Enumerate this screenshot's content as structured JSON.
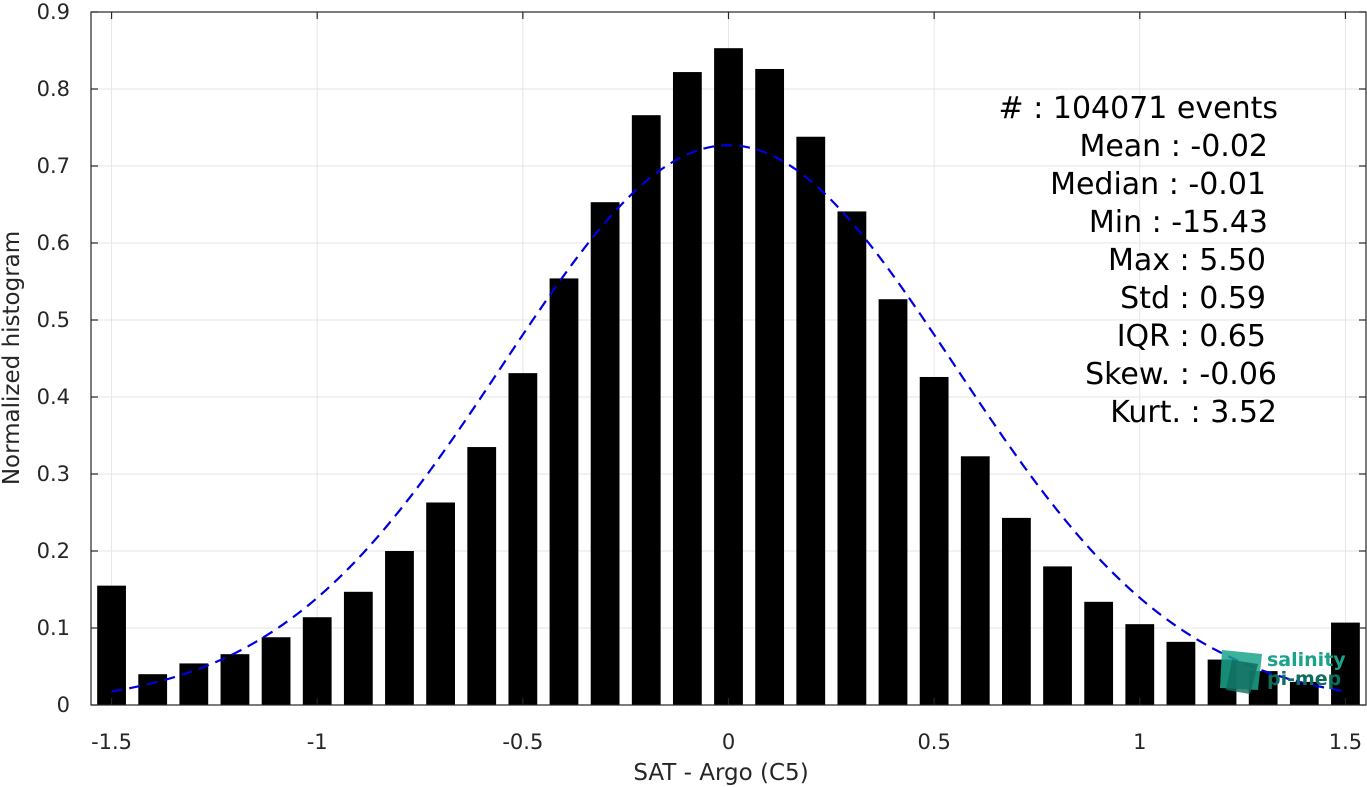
{
  "chart_data": {
    "type": "bar",
    "xlabel": "SAT - Argo (C5)",
    "ylabel": "Normalized histogram",
    "xlim": [
      -1.55,
      1.55
    ],
    "ylim": [
      0,
      0.9
    ],
    "xticks": [
      -1.5,
      -1,
      -0.5,
      0,
      0.5,
      1,
      1.5
    ],
    "xtick_labels": [
      "-1.5",
      "-1",
      "-0.5",
      "0",
      "0.5",
      "1",
      "1.5"
    ],
    "yticks": [
      0,
      0.1,
      0.2,
      0.3,
      0.4,
      0.5,
      0.6,
      0.7,
      0.8,
      0.9
    ],
    "ytick_labels": [
      "0",
      "0.1",
      "0.2",
      "0.3",
      "0.4",
      "0.5",
      "0.6",
      "0.7",
      "0.8",
      "0.9"
    ],
    "grid": true,
    "bar_color": "#000000",
    "bar_width": 0.07,
    "x": [
      -1.5,
      -1.4,
      -1.3,
      -1.2,
      -1.1,
      -1.0,
      -0.9,
      -0.8,
      -0.7,
      -0.6,
      -0.5,
      -0.4,
      -0.3,
      -0.2,
      -0.1,
      0.0,
      0.1,
      0.2,
      0.3,
      0.4,
      0.5,
      0.6,
      0.7,
      0.8,
      0.9,
      1.0,
      1.1,
      1.2,
      1.3,
      1.4,
      1.5
    ],
    "values": [
      0.155,
      0.04,
      0.054,
      0.066,
      0.088,
      0.114,
      0.147,
      0.2,
      0.263,
      0.335,
      0.431,
      0.554,
      0.653,
      0.766,
      0.822,
      0.853,
      0.826,
      0.738,
      0.641,
      0.527,
      0.426,
      0.323,
      0.243,
      0.18,
      0.134,
      0.105,
      0.082,
      0.059,
      0.044,
      0.03,
      0.107
    ],
    "fit_curve": {
      "type": "gaussian",
      "mean": 0,
      "std": 0.55,
      "peak": 0.727,
      "color": "#0000dd",
      "style": "dashed",
      "x_range": [
        -1.5,
        1.5
      ]
    },
    "stats": [
      "#  : 104071 events",
      "Mean : -0.02",
      "Median : -0.01",
      "Min : -15.43",
      "Max : 5.50",
      "Std : 0.59",
      "IQR : 0.65",
      "Skew. : -0.06",
      "Kurt. : 3.52"
    ],
    "logo": {
      "line1": "salinity",
      "line2": "pi-mep",
      "color": "#1aa38a",
      "dark_color": "#0f6c5e"
    }
  }
}
